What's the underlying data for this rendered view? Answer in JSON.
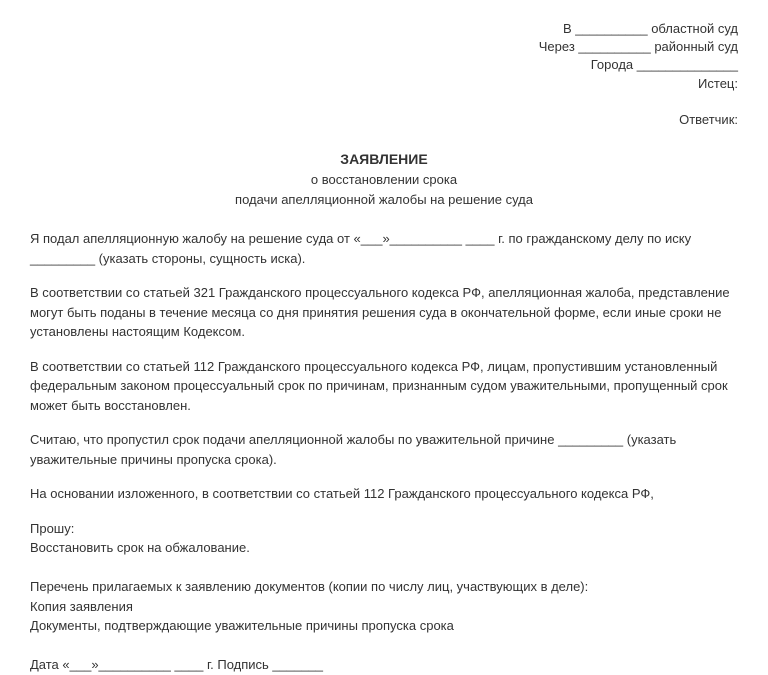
{
  "header": {
    "line1": "В __________ областной суд",
    "line2": "Через __________ районный суд",
    "line3": "Города ______________",
    "line4": "Истец:",
    "line5": "Ответчик:"
  },
  "title": {
    "main": "ЗАЯВЛЕНИЕ",
    "sub1": "о восстановлении срока",
    "sub2": "подачи апелляционной жалобы на решение суда"
  },
  "body": {
    "p1": "Я подал апелляционную жалобу на решение суда от «___»__________ ____ г. по гражданскому делу по иску _________ (указать стороны, сущность иска).",
    "p2": "В соответствии со статьей 321 Гражданского процессуального кодекса РФ, апелляционная жалоба, представление могут быть поданы в течение месяца со дня принятия решения суда в окончательной форме, если иные сроки не установлены настоящим Кодексом.",
    "p3": "В соответствии со статьей 112 Гражданского процессуального кодекса РФ, лицам, пропустившим установленный федеральным законом процессуальный срок по причинам, признанным судом уважительными, пропущенный срок может быть восстановлен.",
    "p4": "Считаю, что пропустил срок подачи апелляционной жалобы по уважительной причине _________ (указать уважительные причины пропуска срока).",
    "p5": "На основании изложенного, в соответствии со статьей 112 Гражданского процессуального кодекса РФ,",
    "p6": "Прошу:",
    "p7": "Восстановить срок на обжалование.",
    "p8": "Перечень прилагаемых к заявлению документов (копии по числу лиц, участвующих в деле):",
    "p9": "Копия заявления",
    "p10": "Документы, подтверждающие уважительные причины пропуска срока",
    "date": "Дата «___»__________ ____ г. Подпись _______"
  },
  "styles": {
    "font_family": "Arial, sans-serif",
    "font_size_body": 13,
    "font_size_title": 14,
    "text_color": "#333",
    "background_color": "#ffffff",
    "line_height": 1.5
  }
}
